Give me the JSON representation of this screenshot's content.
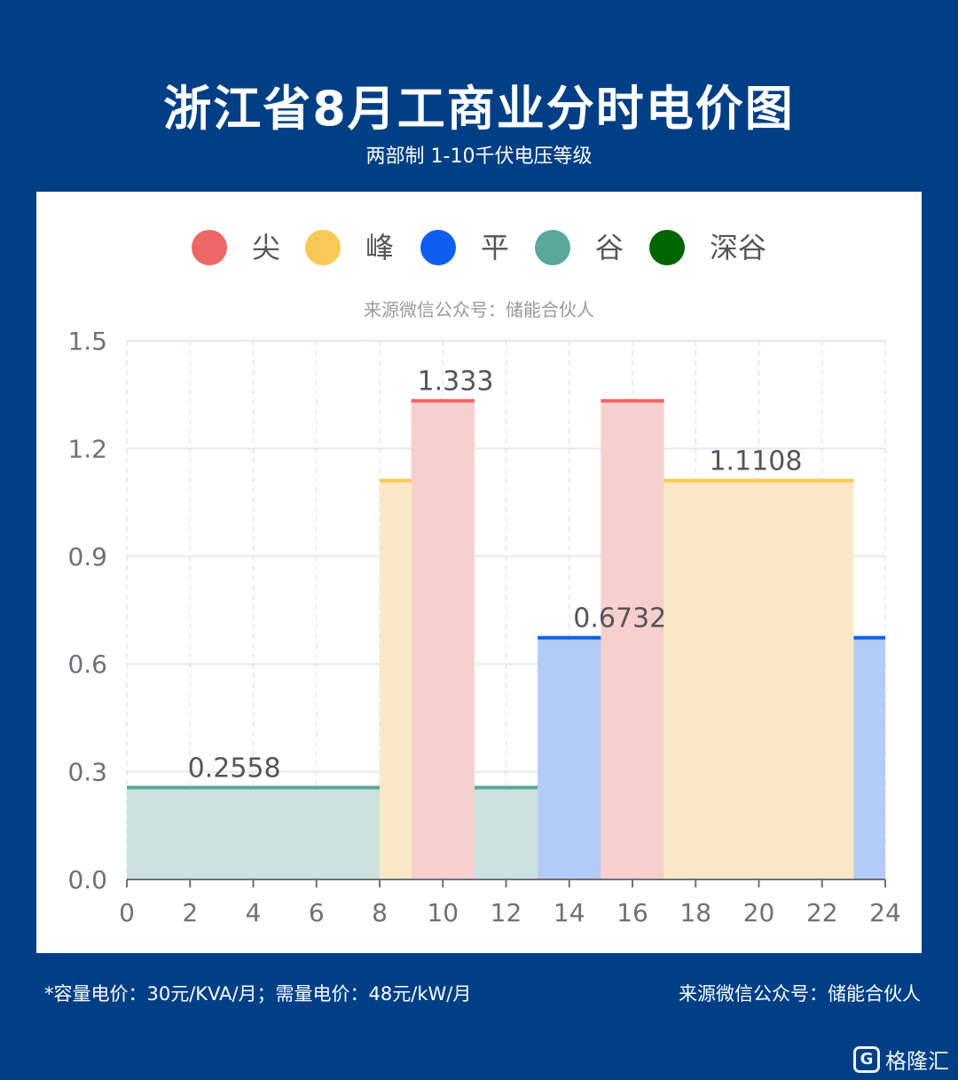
{
  "header": {
    "title": "浙江省8月工商业分时电价图",
    "subtitle": "两部制 1-10千伏电压等级"
  },
  "footer": {
    "note": "*容量电价：30元/KVA/月；需量电价：48元/kW/月",
    "source": "来源微信公众号：储能合伙人"
  },
  "watermark": {
    "logo_glyph": "G",
    "text": "格隆汇"
  },
  "chart_data": {
    "type": "area",
    "step": true,
    "title": "",
    "source_label": "来源微信公众号：储能合伙人",
    "xlabel": "",
    "ylabel": "",
    "xlim": [
      0,
      24
    ],
    "ylim": [
      0,
      1.5
    ],
    "x_ticks": [
      "0",
      "2",
      "4",
      "6",
      "8",
      "10",
      "12",
      "14",
      "16",
      "18",
      "20",
      "22",
      "24"
    ],
    "y_ticks": [
      "0.0",
      "0.3",
      "0.6",
      "0.9",
      "1.2",
      "1.5"
    ],
    "grid": true,
    "legend_position": "top",
    "series": [
      {
        "name": "尖",
        "color": "#ee6666",
        "fill": "#f8cfcf",
        "value": 1.333,
        "intervals": [
          [
            9,
            11
          ],
          [
            15,
            17
          ]
        ]
      },
      {
        "name": "峰",
        "color": "#fac858",
        "fill": "#fce8c7",
        "value": 1.1108,
        "intervals": [
          [
            8,
            9
          ],
          [
            17,
            23
          ]
        ]
      },
      {
        "name": "平",
        "color": "#0e5ef0",
        "fill": "#b3cbf6",
        "value": 0.6732,
        "intervals": [
          [
            13,
            15
          ],
          [
            23,
            24
          ]
        ]
      },
      {
        "name": "谷",
        "color": "#5aa89b",
        "fill": "#cde1df",
        "value": 0.2558,
        "intervals": [
          [
            0,
            8
          ],
          [
            11,
            13
          ]
        ]
      },
      {
        "name": "深谷",
        "color": "#006400",
        "fill": "#cfe6cf",
        "value": null,
        "intervals": []
      }
    ],
    "data_labels": [
      {
        "text": "0.2558",
        "x": 3.4,
        "y": 0.2558
      },
      {
        "text": "1.333",
        "x": 10.4,
        "y": 1.333
      },
      {
        "text": "0.6732",
        "x": 15.6,
        "y": 0.6732
      },
      {
        "text": "1.1108",
        "x": 19.9,
        "y": 1.1108
      }
    ]
  }
}
